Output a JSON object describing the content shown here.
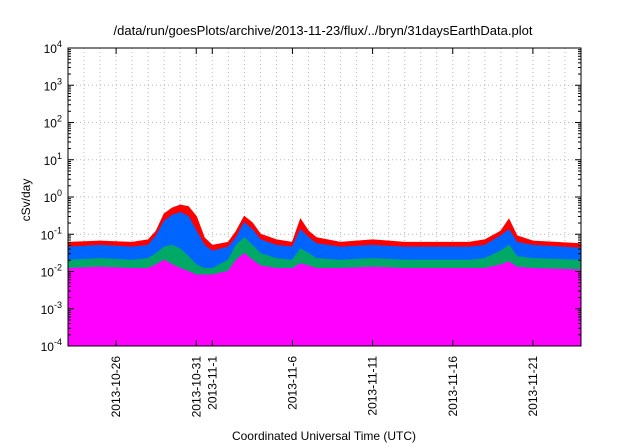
{
  "chart_data": {
    "type": "line",
    "title": "/data/run/goesPlots/archive/2013-11-23/flux/../bryn/31daysEarthData.plot",
    "xlabel": "Coordinated Universal Time (UTC)",
    "ylabel": "cSv/day",
    "yscale": "log",
    "ylim": [
      0.0001,
      10000
    ],
    "xlim": [
      "2013-10-23",
      "2013-11-24"
    ],
    "grid": true,
    "y_ticks": [
      {
        "base": "10",
        "exp": "-4"
      },
      {
        "base": "10",
        "exp": "-3"
      },
      {
        "base": "10",
        "exp": "-2"
      },
      {
        "base": "10",
        "exp": "-1"
      },
      {
        "base": "10",
        "exp": "0"
      },
      {
        "base": "10",
        "exp": "1"
      },
      {
        "base": "10",
        "exp": "2"
      },
      {
        "base": "10",
        "exp": "3"
      },
      {
        "base": "10",
        "exp": "4"
      }
    ],
    "x_tick_labels": [
      "2013-10-26",
      "2013-10-31",
      "2013-11-1",
      "2013-11-6",
      "2013-11-11",
      "2013-11-16",
      "2013-11-21"
    ],
    "x_tick_dates": [
      "2013-10-26",
      "2013-10-31",
      "2013-11-01",
      "2013-11-06",
      "2013-11-11",
      "2013-11-16",
      "2013-11-21"
    ],
    "series": [
      {
        "color": "#ff0000",
        "points": [
          [
            "2013-10-23",
            0.06
          ],
          [
            "2013-10-25",
            0.065
          ],
          [
            "2013-10-27",
            0.06
          ],
          [
            "2013-10-28",
            0.07
          ],
          [
            "2013-10-28T12:00",
            0.12
          ],
          [
            "2013-10-29",
            0.35
          ],
          [
            "2013-10-29T12:00",
            0.5
          ],
          [
            "2013-10-30",
            0.6
          ],
          [
            "2013-10-30T12:00",
            0.55
          ],
          [
            "2013-10-31",
            0.3
          ],
          [
            "2013-10-31T12:00",
            0.08
          ],
          [
            "2013-11-01",
            0.05
          ],
          [
            "2013-11-02",
            0.06
          ],
          [
            "2013-11-02T12:00",
            0.12
          ],
          [
            "2013-11-03",
            0.3
          ],
          [
            "2013-11-03T12:00",
            0.2
          ],
          [
            "2013-11-04",
            0.1
          ],
          [
            "2013-11-05",
            0.07
          ],
          [
            "2013-11-06",
            0.06
          ],
          [
            "2013-11-06T12:00",
            0.25
          ],
          [
            "2013-11-07",
            0.12
          ],
          [
            "2013-11-07T12:00",
            0.08
          ],
          [
            "2013-11-09",
            0.06
          ],
          [
            "2013-11-11",
            0.07
          ],
          [
            "2013-11-13",
            0.06
          ],
          [
            "2013-11-15",
            0.06
          ],
          [
            "2013-11-17",
            0.06
          ],
          [
            "2013-11-18",
            0.07
          ],
          [
            "2013-11-19",
            0.12
          ],
          [
            "2013-11-19T12:00",
            0.25
          ],
          [
            "2013-11-20",
            0.09
          ],
          [
            "2013-11-21",
            0.065
          ],
          [
            "2013-11-24",
            0.055
          ]
        ]
      },
      {
        "color": "#0064ff",
        "points": [
          [
            "2013-10-23",
            0.045
          ],
          [
            "2013-10-25",
            0.05
          ],
          [
            "2013-10-27",
            0.045
          ],
          [
            "2013-10-28",
            0.05
          ],
          [
            "2013-10-28T12:00",
            0.09
          ],
          [
            "2013-10-29",
            0.22
          ],
          [
            "2013-10-29T12:00",
            0.32
          ],
          [
            "2013-10-30",
            0.38
          ],
          [
            "2013-10-30T12:00",
            0.3
          ],
          [
            "2013-10-31",
            0.12
          ],
          [
            "2013-10-31T12:00",
            0.05
          ],
          [
            "2013-11-01",
            0.035
          ],
          [
            "2013-11-02",
            0.045
          ],
          [
            "2013-11-02T12:00",
            0.08
          ],
          [
            "2013-11-03",
            0.2
          ],
          [
            "2013-11-03T12:00",
            0.13
          ],
          [
            "2013-11-04",
            0.07
          ],
          [
            "2013-11-05",
            0.05
          ],
          [
            "2013-11-06",
            0.045
          ],
          [
            "2013-11-06T12:00",
            0.13
          ],
          [
            "2013-11-07",
            0.08
          ],
          [
            "2013-11-07T12:00",
            0.055
          ],
          [
            "2013-11-09",
            0.045
          ],
          [
            "2013-11-11",
            0.05
          ],
          [
            "2013-11-13",
            0.045
          ],
          [
            "2013-11-15",
            0.045
          ],
          [
            "2013-11-17",
            0.045
          ],
          [
            "2013-11-18",
            0.05
          ],
          [
            "2013-11-19",
            0.09
          ],
          [
            "2013-11-19T12:00",
            0.13
          ],
          [
            "2013-11-20",
            0.06
          ],
          [
            "2013-11-21",
            0.05
          ],
          [
            "2013-11-24",
            0.042
          ]
        ]
      },
      {
        "color": "#00aa66",
        "points": [
          [
            "2013-10-23",
            0.02
          ],
          [
            "2013-10-25",
            0.022
          ],
          [
            "2013-10-27",
            0.02
          ],
          [
            "2013-10-28",
            0.022
          ],
          [
            "2013-10-28T12:00",
            0.03
          ],
          [
            "2013-10-29",
            0.045
          ],
          [
            "2013-10-29T12:00",
            0.05
          ],
          [
            "2013-10-30",
            0.04
          ],
          [
            "2013-10-30T12:00",
            0.025
          ],
          [
            "2013-10-31",
            0.015
          ],
          [
            "2013-10-31T12:00",
            0.012
          ],
          [
            "2013-11-01",
            0.012
          ],
          [
            "2013-11-02",
            0.02
          ],
          [
            "2013-11-02T12:00",
            0.05
          ],
          [
            "2013-11-03",
            0.08
          ],
          [
            "2013-11-03T12:00",
            0.05
          ],
          [
            "2013-11-04",
            0.03
          ],
          [
            "2013-11-05",
            0.022
          ],
          [
            "2013-11-06",
            0.02
          ],
          [
            "2013-11-06T12:00",
            0.04
          ],
          [
            "2013-11-07",
            0.03
          ],
          [
            "2013-11-07T12:00",
            0.022
          ],
          [
            "2013-11-09",
            0.02
          ],
          [
            "2013-11-11",
            0.022
          ],
          [
            "2013-11-13",
            0.02
          ],
          [
            "2013-11-15",
            0.02
          ],
          [
            "2013-11-17",
            0.02
          ],
          [
            "2013-11-18",
            0.022
          ],
          [
            "2013-11-19",
            0.035
          ],
          [
            "2013-11-19T12:00",
            0.05
          ],
          [
            "2013-11-20",
            0.025
          ],
          [
            "2013-11-21",
            0.022
          ],
          [
            "2013-11-24",
            0.02
          ]
        ]
      },
      {
        "color": "#ff00ff",
        "points": [
          [
            "2013-10-23",
            0.012
          ],
          [
            "2013-10-25",
            0.013
          ],
          [
            "2013-10-27",
            0.012
          ],
          [
            "2013-10-28",
            0.012
          ],
          [
            "2013-10-28T12:00",
            0.015
          ],
          [
            "2013-10-29",
            0.02
          ],
          [
            "2013-10-29T12:00",
            0.015
          ],
          [
            "2013-10-30",
            0.012
          ],
          [
            "2013-10-30T12:00",
            0.01
          ],
          [
            "2013-10-31",
            0.008
          ],
          [
            "2013-10-31T12:00",
            0.008
          ],
          [
            "2013-11-01",
            0.008
          ],
          [
            "2013-11-02",
            0.01
          ],
          [
            "2013-11-02T12:00",
            0.02
          ],
          [
            "2013-11-03",
            0.03
          ],
          [
            "2013-11-03T12:00",
            0.02
          ],
          [
            "2013-11-04",
            0.014
          ],
          [
            "2013-11-05",
            0.012
          ],
          [
            "2013-11-06",
            0.012
          ],
          [
            "2013-11-06T12:00",
            0.016
          ],
          [
            "2013-11-07",
            0.014
          ],
          [
            "2013-11-07T12:00",
            0.012
          ],
          [
            "2013-11-09",
            0.012
          ],
          [
            "2013-11-11",
            0.013
          ],
          [
            "2013-11-13",
            0.012
          ],
          [
            "2013-11-15",
            0.012
          ],
          [
            "2013-11-17",
            0.012
          ],
          [
            "2013-11-18",
            0.012
          ],
          [
            "2013-11-19",
            0.015
          ],
          [
            "2013-11-19T12:00",
            0.018
          ],
          [
            "2013-11-20",
            0.013
          ],
          [
            "2013-11-21",
            0.012
          ],
          [
            "2013-11-24",
            0.011
          ]
        ]
      },
      {
        "color": "#ff00ff",
        "points": [
          [
            "2013-10-23",
            0.004
          ],
          [
            "2013-10-25",
            0.004
          ],
          [
            "2013-10-27",
            0.004
          ],
          [
            "2013-10-28",
            0.0035
          ],
          [
            "2013-10-28T12:00",
            0.004
          ],
          [
            "2013-10-29",
            0.005
          ],
          [
            "2013-10-30",
            0.005
          ],
          [
            "2013-10-31",
            0.004
          ],
          [
            "2013-11-01",
            0.0035
          ],
          [
            "2013-11-02",
            0.004
          ],
          [
            "2013-11-03",
            0.005
          ],
          [
            "2013-11-04",
            0.004
          ],
          [
            "2013-11-06",
            0.004
          ],
          [
            "2013-11-09",
            0.004
          ],
          [
            "2013-11-12",
            0.004
          ],
          [
            "2013-11-15",
            0.004
          ],
          [
            "2013-11-18",
            0.004
          ],
          [
            "2013-11-21",
            0.004
          ],
          [
            "2013-11-24",
            0.004
          ]
        ]
      }
    ],
    "dropouts": [
      {
        "date": "2013-10-24T12:00",
        "color": "#ff00ff",
        "value": 0.0001
      },
      {
        "date": "2013-11-01T06:00",
        "color": "#ff00ff",
        "value": 0.0001
      },
      {
        "date": "2013-11-05T12:00",
        "color": "#ff00ff",
        "value": 0.0001
      },
      {
        "date": "2013-11-08T00:00",
        "color": "#ff00ff",
        "value": 0.0001
      },
      {
        "date": "2013-11-14T12:00",
        "color": "#ff00ff",
        "value": 0.0001
      },
      {
        "date": "2013-11-15T12:00",
        "color": "#ff00ff",
        "value": 0.0001
      },
      {
        "date": "2013-11-22T12:00",
        "color": "#ff00ff",
        "value": 0.0001
      }
    ]
  }
}
